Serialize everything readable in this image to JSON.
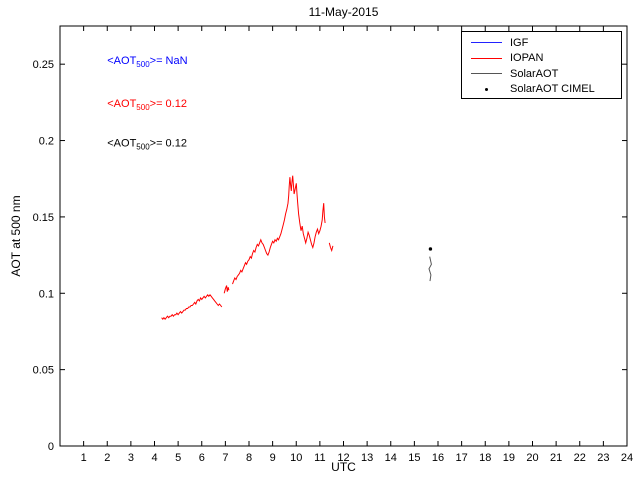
{
  "window": {
    "title": "11-May-2015"
  },
  "chart_data": {
    "type": "line",
    "title": "11-May-2015",
    "xlabel": "UTC",
    "ylabel": "AOT at 500 nm",
    "xlim": [
      0,
      24
    ],
    "ylim": [
      0,
      0.275
    ],
    "xticks": [
      1,
      2,
      3,
      4,
      5,
      6,
      7,
      8,
      9,
      10,
      11,
      12,
      13,
      14,
      15,
      16,
      17,
      18,
      19,
      20,
      21,
      22,
      23,
      24
    ],
    "yticks": [
      0,
      0.05,
      0.1,
      0.15,
      0.2,
      0.25
    ],
    "ytick_labels": [
      "0",
      "0.05",
      "0.1",
      "0.15",
      "0.2",
      "0.25"
    ],
    "grid": false,
    "legend_position": "top-right",
    "series": [
      {
        "name": "IGF",
        "type": "line",
        "color": "#2222ff",
        "segments": []
      },
      {
        "name": "IOPAN",
        "type": "line",
        "color": "#ff0000",
        "segments": [
          [
            [
              4.3,
              0.084
            ],
            [
              4.35,
              0.083
            ],
            [
              4.4,
              0.084
            ],
            [
              4.45,
              0.083
            ],
            [
              4.5,
              0.084
            ],
            [
              4.55,
              0.085
            ],
            [
              4.6,
              0.084
            ],
            [
              4.65,
              0.085
            ],
            [
              4.7,
              0.085
            ],
            [
              4.75,
              0.086
            ],
            [
              4.8,
              0.085
            ],
            [
              4.85,
              0.086
            ],
            [
              4.9,
              0.086
            ],
            [
              4.95,
              0.087
            ],
            [
              5.0,
              0.086
            ],
            [
              5.05,
              0.087
            ],
            [
              5.1,
              0.088
            ],
            [
              5.15,
              0.087
            ],
            [
              5.2,
              0.088
            ],
            [
              5.25,
              0.089
            ],
            [
              5.3,
              0.089
            ],
            [
              5.35,
              0.09
            ],
            [
              5.4,
              0.09
            ],
            [
              5.45,
              0.091
            ],
            [
              5.5,
              0.091
            ],
            [
              5.55,
              0.092
            ],
            [
              5.6,
              0.092
            ],
            [
              5.65,
              0.093
            ],
            [
              5.7,
              0.094
            ],
            [
              5.75,
              0.093
            ],
            [
              5.8,
              0.095
            ],
            [
              5.85,
              0.096
            ],
            [
              5.9,
              0.095
            ],
            [
              5.95,
              0.097
            ],
            [
              6.0,
              0.096
            ],
            [
              6.05,
              0.097
            ],
            [
              6.1,
              0.098
            ],
            [
              6.15,
              0.097
            ],
            [
              6.2,
              0.098
            ],
            [
              6.25,
              0.099
            ],
            [
              6.3,
              0.098
            ],
            [
              6.35,
              0.099
            ],
            [
              6.4,
              0.098
            ],
            [
              6.45,
              0.097
            ],
            [
              6.5,
              0.096
            ],
            [
              6.55,
              0.095
            ],
            [
              6.6,
              0.094
            ],
            [
              6.65,
              0.093
            ],
            [
              6.7,
              0.092
            ],
            [
              6.75,
              0.093
            ],
            [
              6.8,
              0.092
            ],
            [
              6.85,
              0.091
            ]
          ],
          [
            [
              6.95,
              0.1
            ],
            [
              7.0,
              0.103
            ],
            [
              7.05,
              0.105
            ],
            [
              7.08,
              0.101
            ],
            [
              7.12,
              0.104
            ],
            [
              7.15,
              0.102
            ]
          ],
          [
            [
              7.3,
              0.106
            ],
            [
              7.35,
              0.108
            ],
            [
              7.4,
              0.11
            ],
            [
              7.45,
              0.109
            ],
            [
              7.5,
              0.111
            ],
            [
              7.55,
              0.112
            ],
            [
              7.6,
              0.113
            ],
            [
              7.65,
              0.115
            ],
            [
              7.7,
              0.114
            ],
            [
              7.75,
              0.116
            ],
            [
              7.8,
              0.118
            ],
            [
              7.85,
              0.12
            ],
            [
              7.9,
              0.119
            ],
            [
              7.95,
              0.121
            ],
            [
              8.0,
              0.122
            ],
            [
              8.05,
              0.124
            ],
            [
              8.1,
              0.123
            ],
            [
              8.15,
              0.126
            ],
            [
              8.2,
              0.128
            ],
            [
              8.25,
              0.127
            ],
            [
              8.3,
              0.13
            ],
            [
              8.35,
              0.132
            ],
            [
              8.4,
              0.131
            ],
            [
              8.45,
              0.133
            ],
            [
              8.5,
              0.135
            ],
            [
              8.55,
              0.133
            ],
            [
              8.6,
              0.132
            ],
            [
              8.65,
              0.13
            ],
            [
              8.7,
              0.128
            ],
            [
              8.75,
              0.126
            ],
            [
              8.8,
              0.125
            ],
            [
              8.85,
              0.127
            ],
            [
              8.9,
              0.13
            ],
            [
              8.95,
              0.132
            ],
            [
              9.0,
              0.134
            ],
            [
              9.05,
              0.133
            ],
            [
              9.1,
              0.135
            ],
            [
              9.15,
              0.134
            ],
            [
              9.2,
              0.136
            ],
            [
              9.25,
              0.135
            ],
            [
              9.3,
              0.137
            ],
            [
              9.35,
              0.139
            ],
            [
              9.4,
              0.142
            ],
            [
              9.45,
              0.145
            ],
            [
              9.5,
              0.148
            ],
            [
              9.55,
              0.152
            ],
            [
              9.6,
              0.155
            ],
            [
              9.65,
              0.159
            ],
            [
              9.68,
              0.164
            ],
            [
              9.7,
              0.17
            ],
            [
              9.73,
              0.176
            ],
            [
              9.76,
              0.171
            ],
            [
              9.79,
              0.167
            ],
            [
              9.82,
              0.173
            ],
            [
              9.85,
              0.177
            ],
            [
              9.88,
              0.171
            ],
            [
              9.91,
              0.165
            ],
            [
              9.95,
              0.168
            ],
            [
              10.0,
              0.172
            ],
            [
              10.03,
              0.165
            ],
            [
              10.06,
              0.159
            ],
            [
              10.1,
              0.152
            ],
            [
              10.15,
              0.146
            ],
            [
              10.2,
              0.141
            ],
            [
              10.25,
              0.144
            ],
            [
              10.3,
              0.139
            ],
            [
              10.35,
              0.136
            ],
            [
              10.4,
              0.133
            ],
            [
              10.45,
              0.136
            ],
            [
              10.5,
              0.14
            ],
            [
              10.55,
              0.138
            ],
            [
              10.6,
              0.135
            ],
            [
              10.65,
              0.132
            ],
            [
              10.7,
              0.13
            ],
            [
              10.75,
              0.133
            ],
            [
              10.8,
              0.137
            ],
            [
              10.85,
              0.14
            ],
            [
              10.9,
              0.142
            ],
            [
              10.95,
              0.139
            ],
            [
              11.0,
              0.141
            ],
            [
              11.05,
              0.144
            ],
            [
              11.1,
              0.148
            ],
            [
              11.13,
              0.154
            ],
            [
              11.16,
              0.159
            ],
            [
              11.19,
              0.15
            ],
            [
              11.22,
              0.146
            ]
          ],
          [
            [
              11.4,
              0.133
            ],
            [
              11.45,
              0.13
            ],
            [
              11.5,
              0.128
            ],
            [
              11.55,
              0.131
            ]
          ]
        ]
      },
      {
        "name": "SolarAOT",
        "type": "line",
        "color": "#555555",
        "segments": [
          [
            [
              15.65,
              0.124
            ],
            [
              15.72,
              0.119
            ],
            [
              15.62,
              0.116
            ],
            [
              15.7,
              0.112
            ],
            [
              15.66,
              0.108
            ]
          ]
        ]
      },
      {
        "name": "SolarAOT CIMEL",
        "type": "scatter",
        "color": "#000000",
        "points": [
          [
            15.68,
            0.129
          ]
        ]
      }
    ],
    "annotations": [
      {
        "prefix": "<AOT",
        "sub": "500",
        "suffix": ">=  NaN",
        "color": "#0000ff",
        "x": 2.0,
        "y": 0.25
      },
      {
        "prefix": "<AOT",
        "sub": "500",
        "suffix": ">= 0.12",
        "color": "#ff0000",
        "x": 2.0,
        "y": 0.222
      },
      {
        "prefix": "<AOT",
        "sub": "500",
        "suffix": ">= 0.12",
        "color": "#000000",
        "x": 2.0,
        "y": 0.196
      }
    ]
  },
  "legend": {
    "items": [
      {
        "label": "IGF",
        "color": "#2222ff",
        "marker": "line"
      },
      {
        "label": "IOPAN",
        "color": "#ff0000",
        "marker": "line"
      },
      {
        "label": "SolarAOT",
        "color": "#555555",
        "marker": "line"
      },
      {
        "label": "SolarAOT CIMEL",
        "color": "#000000",
        "marker": "dot"
      }
    ]
  }
}
